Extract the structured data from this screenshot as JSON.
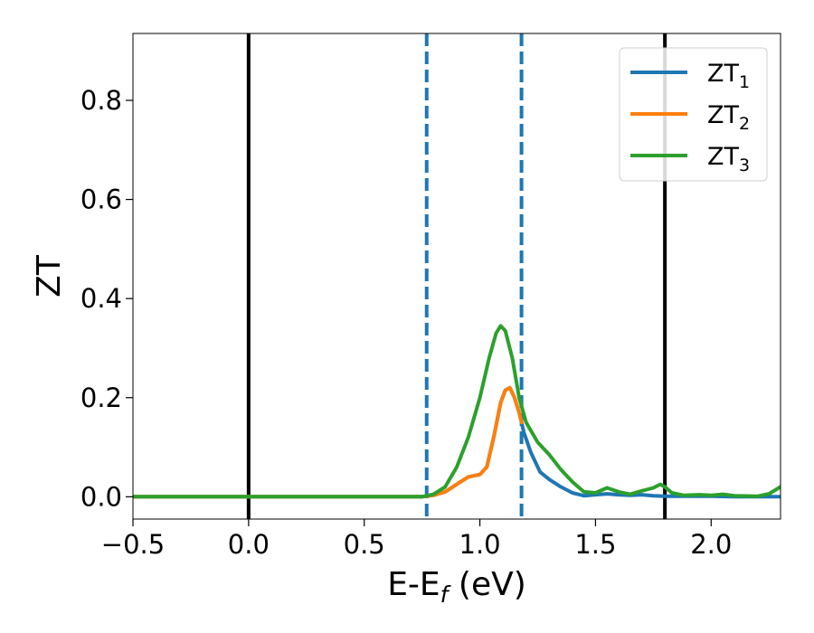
{
  "chart_data": {
    "type": "line",
    "title": "",
    "xlabel": "E-E",
    "xlabel_sub": "f",
    "xlabel_unit": " (eV)",
    "ylabel": "ZT",
    "xlim": [
      -0.5,
      2.3
    ],
    "ylim": [
      -0.045,
      0.935
    ],
    "xticks": [
      -0.5,
      0.0,
      0.5,
      1.0,
      1.5,
      2.0
    ],
    "xtick_labels": [
      "−0.5",
      "0.0",
      "0.5",
      "1.0",
      "1.5",
      "2.0"
    ],
    "yticks": [
      0.0,
      0.2,
      0.4,
      0.6,
      0.8
    ],
    "ytick_labels": [
      "0.0",
      "0.2",
      "0.4",
      "0.6",
      "0.8"
    ],
    "grid": false,
    "legend_position": "top-right",
    "vlines": [
      {
        "x": 0.0,
        "style": "solid",
        "color": "#000000"
      },
      {
        "x": 1.8,
        "style": "solid",
        "color": "#000000"
      },
      {
        "x": 0.77,
        "style": "dashed",
        "color": "#1f77b4"
      },
      {
        "x": 1.18,
        "style": "dashed",
        "color": "#1f77b4"
      }
    ],
    "series": [
      {
        "name": "ZT",
        "sub": "1",
        "color": "#1f77b4",
        "points": [
          [
            -0.5,
            0
          ],
          [
            0.75,
            0
          ],
          [
            0.8,
            0.003
          ],
          [
            0.85,
            0.01
          ],
          [
            0.9,
            0.025
          ],
          [
            0.95,
            0.04
          ],
          [
            1.0,
            0.045
          ],
          [
            1.03,
            0.06
          ],
          [
            1.06,
            0.12
          ],
          [
            1.09,
            0.19
          ],
          [
            1.11,
            0.215
          ],
          [
            1.13,
            0.22
          ],
          [
            1.15,
            0.2
          ],
          [
            1.17,
            0.17
          ],
          [
            1.19,
            0.13
          ],
          [
            1.22,
            0.09
          ],
          [
            1.26,
            0.05
          ],
          [
            1.3,
            0.035
          ],
          [
            1.35,
            0.02
          ],
          [
            1.4,
            0.008
          ],
          [
            1.45,
            0.002
          ],
          [
            1.5,
            0.004
          ],
          [
            1.55,
            0.006
          ],
          [
            1.6,
            0.004
          ],
          [
            1.65,
            0.003
          ],
          [
            1.7,
            0.004
          ],
          [
            1.75,
            0.002
          ],
          [
            1.8,
            0.001
          ],
          [
            1.9,
            0.001
          ],
          [
            2.0,
            0.001
          ],
          [
            2.1,
            0
          ],
          [
            2.3,
            0
          ]
        ]
      },
      {
        "name": "ZT",
        "sub": "2",
        "color": "#ff7f0e",
        "points": [
          [
            -0.5,
            0
          ],
          [
            0.75,
            0
          ],
          [
            0.8,
            0.003
          ],
          [
            0.85,
            0.01
          ],
          [
            0.9,
            0.025
          ],
          [
            0.95,
            0.04
          ],
          [
            1.0,
            0.045
          ],
          [
            1.03,
            0.06
          ],
          [
            1.06,
            0.12
          ],
          [
            1.09,
            0.19
          ],
          [
            1.11,
            0.215
          ],
          [
            1.13,
            0.22
          ],
          [
            1.15,
            0.2
          ],
          [
            1.17,
            0.17
          ],
          [
            1.18,
            0.15
          ]
        ]
      },
      {
        "name": "ZT",
        "sub": "3",
        "color": "#2ca02c",
        "points": [
          [
            -0.5,
            0
          ],
          [
            0.75,
            0
          ],
          [
            0.8,
            0.005
          ],
          [
            0.85,
            0.02
          ],
          [
            0.9,
            0.06
          ],
          [
            0.95,
            0.12
          ],
          [
            1.0,
            0.2
          ],
          [
            1.04,
            0.28
          ],
          [
            1.07,
            0.33
          ],
          [
            1.09,
            0.345
          ],
          [
            1.11,
            0.335
          ],
          [
            1.14,
            0.28
          ],
          [
            1.17,
            0.2
          ],
          [
            1.2,
            0.15
          ],
          [
            1.25,
            0.11
          ],
          [
            1.3,
            0.085
          ],
          [
            1.35,
            0.055
          ],
          [
            1.4,
            0.03
          ],
          [
            1.45,
            0.01
          ],
          [
            1.5,
            0.008
          ],
          [
            1.55,
            0.018
          ],
          [
            1.6,
            0.01
          ],
          [
            1.65,
            0.005
          ],
          [
            1.7,
            0.012
          ],
          [
            1.75,
            0.018
          ],
          [
            1.78,
            0.025
          ],
          [
            1.8,
            0.02
          ],
          [
            1.83,
            0.008
          ],
          [
            1.88,
            0.003
          ],
          [
            1.95,
            0.004
          ],
          [
            2.0,
            0.003
          ],
          [
            2.05,
            0.005
          ],
          [
            2.1,
            0.002
          ],
          [
            2.2,
            0.001
          ],
          [
            2.25,
            0.006
          ],
          [
            2.3,
            0.02
          ]
        ]
      }
    ]
  }
}
